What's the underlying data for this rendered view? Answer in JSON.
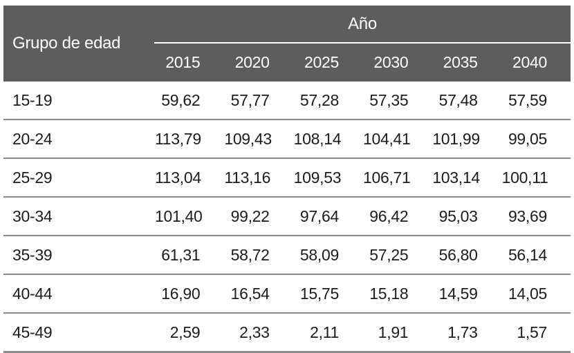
{
  "table": {
    "corner_header": "Grupo de edad",
    "column_group_header": "Año",
    "years": [
      "2015",
      "2020",
      "2025",
      "2030",
      "2035",
      "2040"
    ],
    "rows": [
      {
        "group": "15-19",
        "values": [
          "59,62",
          "57,77",
          "57,28",
          "57,35",
          "57,48",
          "57,59"
        ]
      },
      {
        "group": "20-24",
        "values": [
          "113,79",
          "109,43",
          "108,14",
          "104,41",
          "101,99",
          "99,05"
        ]
      },
      {
        "group": "25-29",
        "values": [
          "113,04",
          "113,16",
          "109,53",
          "106,71",
          "103,14",
          "100,11"
        ]
      },
      {
        "group": "30-34",
        "values": [
          "101,40",
          "99,22",
          "97,64",
          "96,42",
          "95,03",
          "93,69"
        ]
      },
      {
        "group": "35-39",
        "values": [
          "61,31",
          "58,72",
          "58,09",
          "57,25",
          "56,80",
          "56,14"
        ]
      },
      {
        "group": "40-44",
        "values": [
          "16,90",
          "16,54",
          "15,75",
          "15,18",
          "14,59",
          "14,05"
        ]
      },
      {
        "group": "45-49",
        "values": [
          "2,59",
          "2,33",
          "2,11",
          "1,91",
          "1,73",
          "1,57"
        ]
      }
    ],
    "colors": {
      "header_bg": "#5d5d5d",
      "header_text": "#ffffff",
      "body_text": "#1c1c1c",
      "row_line": "#8a8a8a"
    }
  },
  "chart_data": {
    "type": "table",
    "title": "",
    "row_label_header": "Grupo de edad",
    "column_group_header": "Año",
    "columns": [
      "2015",
      "2020",
      "2025",
      "2030",
      "2035",
      "2040"
    ],
    "series": [
      {
        "name": "15-19",
        "values": [
          59.62,
          57.77,
          57.28,
          57.35,
          57.48,
          57.59
        ]
      },
      {
        "name": "20-24",
        "values": [
          113.79,
          109.43,
          108.14,
          104.41,
          101.99,
          99.05
        ]
      },
      {
        "name": "25-29",
        "values": [
          113.04,
          113.16,
          109.53,
          106.71,
          103.14,
          100.11
        ]
      },
      {
        "name": "30-34",
        "values": [
          101.4,
          99.22,
          97.64,
          96.42,
          95.03,
          93.69
        ]
      },
      {
        "name": "35-39",
        "values": [
          61.31,
          58.72,
          58.09,
          57.25,
          56.8,
          56.14
        ]
      },
      {
        "name": "40-44",
        "values": [
          16.9,
          16.54,
          15.75,
          15.18,
          14.59,
          14.05
        ]
      },
      {
        "name": "45-49",
        "values": [
          2.59,
          2.33,
          2.11,
          1.91,
          1.73,
          1.57
        ]
      }
    ],
    "decimal_separator": ",",
    "layout": {
      "header_band": "dark-gray",
      "row_separators": true,
      "bottom_rule": true
    }
  }
}
